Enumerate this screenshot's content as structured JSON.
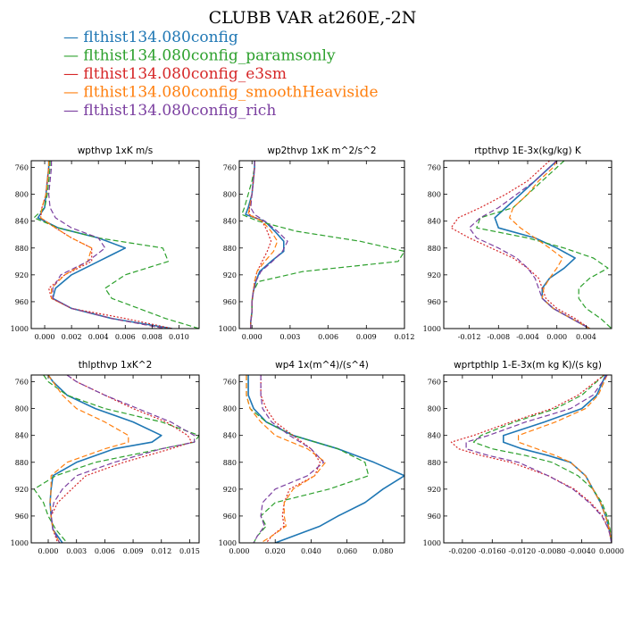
{
  "figure": {
    "title": "CLUBB VAR at260E,-2N",
    "legend": [
      {
        "name": "flthist134.080config",
        "color": "#1f77b4"
      },
      {
        "name": "flthist134.080config_paramsonly",
        "color": "#2ca02c"
      },
      {
        "name": "flthist134.080config_e3sm",
        "color": "#d62728"
      },
      {
        "name": "flthist134.080config_smoothHeaviside",
        "color": "#ff7f0e"
      },
      {
        "name": "flthist134.080config_rich",
        "color": "#7b3fa0"
      }
    ]
  },
  "chart_data": [
    {
      "type": "line",
      "title": "wpthvp   1xK m/s",
      "xlim": [
        -0.001,
        0.0115
      ],
      "xticks": [
        0.0,
        0.002,
        0.004,
        0.006,
        0.008,
        0.01
      ],
      "xtick_labels": [
        "0.000",
        "0.002",
        "0.004",
        "0.006",
        "0.008",
        "0.010"
      ],
      "ylim": [
        1000,
        750
      ],
      "yticks": [
        760,
        800,
        840,
        880,
        920,
        960,
        1000
      ],
      "y": [
        750,
        760,
        780,
        800,
        820,
        835,
        850,
        865,
        880,
        900,
        920,
        940,
        955,
        970,
        985,
        1000
      ],
      "series": [
        {
          "name": "flthist134.080config",
          "values": [
            0.0003,
            0.0003,
            0.0002,
            0.0001,
            0.0,
            -0.0005,
            0.001,
            0.004,
            0.006,
            0.004,
            0.002,
            0.0008,
            0.0006,
            0.002,
            0.005,
            0.0095
          ]
        },
        {
          "name": "flthist134.080config_paramsonly",
          "values": [
            0.0004,
            0.0004,
            0.0003,
            0.0002,
            0.0,
            -0.0008,
            0.001,
            0.004,
            0.0088,
            0.0092,
            0.006,
            0.0045,
            0.005,
            0.007,
            0.009,
            0.0115
          ]
        },
        {
          "name": "flthist134.080config_e3sm",
          "values": [
            0.0003,
            0.0003,
            0.0002,
            0.0001,
            -0.0002,
            -0.0003,
            0.0008,
            0.002,
            0.0035,
            0.0035,
            0.0015,
            0.0003,
            0.0005,
            0.002,
            0.006,
            0.0095
          ]
        },
        {
          "name": "flthist134.080config_smoothHeaviside",
          "values": [
            0.0003,
            0.0003,
            0.0002,
            0.0001,
            -0.0002,
            -0.0003,
            0.0008,
            0.002,
            0.0035,
            0.0032,
            0.0015,
            0.0005,
            0.0005,
            0.002,
            0.005,
            0.009
          ]
        },
        {
          "name": "flthist134.080config_rich",
          "values": [
            0.0005,
            0.0005,
            0.0004,
            0.0003,
            0.0004,
            0.0008,
            0.002,
            0.004,
            0.0045,
            0.0032,
            0.0012,
            0.0006,
            0.0006,
            0.002,
            0.005,
            0.009
          ]
        }
      ]
    },
    {
      "type": "line",
      "title": "wp2thvp   1xK m^2/s^2",
      "xlim": [
        -0.001,
        0.012
      ],
      "xticks": [
        0.0,
        0.003,
        0.006,
        0.009,
        0.012
      ],
      "xtick_labels": [
        "0.000",
        "0.003",
        "0.006",
        "0.009",
        "0.012"
      ],
      "ylim": [
        1000,
        750
      ],
      "yticks": [
        760,
        800,
        840,
        880,
        920,
        960,
        1000
      ],
      "y": [
        750,
        760,
        780,
        800,
        820,
        830,
        840,
        855,
        870,
        885,
        900,
        915,
        930,
        945,
        960,
        975,
        990,
        1000
      ],
      "series": [
        {
          "name": "flthist134.080config",
          "values": [
            0.0002,
            0.0002,
            0.0001,
            0.0,
            -0.0003,
            -0.0005,
            0.001,
            0.0018,
            0.0025,
            0.0025,
            0.0015,
            0.0006,
            0.0003,
            0.0001,
            0.0,
            0.0,
            -0.0001,
            -0.0001
          ]
        },
        {
          "name": "flthist134.080config_paramsonly",
          "values": [
            0.0002,
            0.0002,
            0.0,
            -0.0003,
            -0.0006,
            -0.0008,
            0.0005,
            0.0035,
            0.0085,
            0.012,
            0.0115,
            0.004,
            0.0005,
            0.0001,
            0.0,
            0.0,
            -0.0001,
            -0.0001
          ]
        },
        {
          "name": "flthist134.080config_e3sm",
          "values": [
            0.0002,
            0.0002,
            0.0001,
            0.0,
            -0.0002,
            -0.0002,
            0.0008,
            0.0012,
            0.0015,
            0.0012,
            0.0008,
            0.0004,
            0.0002,
            0.0001,
            0.0,
            0.0,
            -0.0001,
            -0.0001
          ]
        },
        {
          "name": "flthist134.080config_smoothHeaviside",
          "values": [
            0.0002,
            0.0002,
            0.0001,
            0.0,
            -0.0002,
            -0.0003,
            0.0008,
            0.0015,
            0.002,
            0.0017,
            0.001,
            0.0004,
            0.0002,
            0.0001,
            0.0,
            0.0,
            -0.0001,
            -0.0001
          ]
        },
        {
          "name": "flthist134.080config_rich",
          "values": [
            0.0002,
            0.0002,
            0.0001,
            0.0,
            -0.0001,
            0.0002,
            0.001,
            0.002,
            0.0028,
            0.0024,
            0.0016,
            0.0007,
            0.0003,
            0.0001,
            0.0,
            0.0,
            -0.0001,
            -0.0001
          ]
        }
      ]
    },
    {
      "type": "line",
      "title": "rtpthvp   1E-3x(kg/kg) K",
      "xlim": [
        -0.0155,
        0.0075
      ],
      "xticks": [
        -0.012,
        -0.008,
        -0.004,
        0.0,
        0.004
      ],
      "xtick_labels": [
        "-0.012",
        "-0.008",
        "-0.004",
        "0.000",
        "0.004"
      ],
      "ylim": [
        1000,
        750
      ],
      "yticks": [
        760,
        800,
        840,
        880,
        920,
        960,
        1000
      ],
      "y": [
        750,
        760,
        780,
        800,
        820,
        835,
        850,
        865,
        880,
        895,
        910,
        925,
        940,
        955,
        970,
        985,
        1000
      ],
      "series": [
        {
          "name": "flthist134.080config",
          "values": [
            0.0,
            -0.001,
            -0.003,
            -0.005,
            -0.007,
            -0.0085,
            -0.008,
            -0.003,
            0.0,
            0.0025,
            0.001,
            -0.001,
            -0.002,
            -0.002,
            -0.0005,
            0.002,
            0.0045
          ]
        },
        {
          "name": "flthist134.080config_paramsonly",
          "values": [
            0.001,
            0.0,
            -0.002,
            -0.004,
            -0.006,
            -0.0105,
            -0.011,
            -0.004,
            0.001,
            0.005,
            0.007,
            0.0045,
            0.003,
            0.003,
            0.004,
            0.006,
            0.0075
          ]
        },
        {
          "name": "flthist134.080config_e3sm",
          "values": [
            -0.001,
            -0.002,
            -0.004,
            -0.007,
            -0.0105,
            -0.0135,
            -0.0145,
            -0.012,
            -0.009,
            -0.006,
            -0.004,
            -0.0025,
            -0.002,
            -0.0015,
            0.0,
            0.0025,
            0.0045
          ]
        },
        {
          "name": "flthist134.080config_smoothHeaviside",
          "values": [
            0.0,
            -0.0005,
            -0.0025,
            -0.004,
            -0.006,
            -0.0065,
            -0.005,
            -0.003,
            -0.001,
            0.0008,
            0.0,
            -0.001,
            -0.0018,
            -0.002,
            -0.0005,
            0.002,
            0.0045
          ]
        },
        {
          "name": "flthist134.080config_rich",
          "values": [
            0.0,
            -0.001,
            -0.003,
            -0.0055,
            -0.008,
            -0.0105,
            -0.012,
            -0.011,
            -0.008,
            -0.0055,
            -0.004,
            -0.003,
            -0.0025,
            -0.002,
            -0.0005,
            0.002,
            0.0045
          ]
        }
      ]
    },
    {
      "type": "line",
      "title": "thlpthvp   1xK^2",
      "xlim": [
        -0.0018,
        0.016
      ],
      "xticks": [
        0.0,
        0.003,
        0.006,
        0.009,
        0.012,
        0.015
      ],
      "xtick_labels": [
        "0.000",
        "0.003",
        "0.006",
        "0.009",
        "0.012",
        "0.015"
      ],
      "ylim": [
        1000,
        750
      ],
      "yticks": [
        760,
        800,
        840,
        880,
        920,
        960,
        1000
      ],
      "y": [
        750,
        760,
        780,
        800,
        820,
        840,
        850,
        860,
        880,
        900,
        920,
        940,
        960,
        980,
        1000
      ],
      "series": [
        {
          "name": "flthist134.080config",
          "values": [
            0.0,
            0.0005,
            0.002,
            0.005,
            0.009,
            0.012,
            0.011,
            0.007,
            0.003,
            0.0005,
            0.0003,
            0.0002,
            0.0003,
            0.0005,
            0.0015
          ]
        },
        {
          "name": "flthist134.080config_paramsonly",
          "values": [
            -0.0005,
            0.0,
            0.002,
            0.006,
            0.012,
            0.016,
            0.0155,
            0.012,
            0.005,
            0.0008,
            -0.0015,
            -0.0005,
            0.0,
            0.0008,
            0.002
          ]
        },
        {
          "name": "flthist134.080config_e3sm",
          "values": [
            0.002,
            0.003,
            0.006,
            0.009,
            0.0125,
            0.0148,
            0.0152,
            0.013,
            0.008,
            0.004,
            0.0025,
            0.001,
            0.0003,
            0.0005,
            0.001
          ]
        },
        {
          "name": "flthist134.080config_smoothHeaviside",
          "values": [
            0.0,
            0.0005,
            0.0015,
            0.003,
            0.006,
            0.0085,
            0.0085,
            0.006,
            0.002,
            0.0003,
            0.0003,
            0.0002,
            0.0003,
            0.0005,
            0.0012
          ]
        },
        {
          "name": "flthist134.080config_rich",
          "values": [
            0.002,
            0.003,
            0.006,
            0.0095,
            0.013,
            0.0155,
            0.0155,
            0.012,
            0.007,
            0.003,
            0.0015,
            0.0006,
            0.0003,
            0.0005,
            0.0012
          ]
        }
      ]
    },
    {
      "type": "line",
      "title": "wp4   1x(m^4)/(s^4)",
      "xlim": [
        0.0,
        0.092
      ],
      "xticks": [
        0.0,
        0.02,
        0.04,
        0.06,
        0.08
      ],
      "xtick_labels": [
        "0.000",
        "0.020",
        "0.040",
        "0.060",
        "0.080"
      ],
      "ylim": [
        1000,
        750
      ],
      "yticks": [
        760,
        800,
        840,
        880,
        920,
        960,
        1000
      ],
      "y": [
        750,
        760,
        780,
        800,
        820,
        840,
        860,
        880,
        900,
        920,
        940,
        960,
        975,
        990,
        1000
      ],
      "series": [
        {
          "name": "flthist134.080config",
          "values": [
            0.005,
            0.005,
            0.005,
            0.008,
            0.015,
            0.03,
            0.055,
            0.075,
            0.092,
            0.08,
            0.07,
            0.055,
            0.045,
            0.03,
            0.02
          ]
        },
        {
          "name": "flthist134.080config_paramsonly",
          "values": [
            0.004,
            0.004,
            0.004,
            0.006,
            0.015,
            0.03,
            0.055,
            0.07,
            0.072,
            0.05,
            0.02,
            0.012,
            0.015,
            0.01,
            0.008
          ]
        },
        {
          "name": "flthist134.080config_e3sm",
          "values": [
            0.012,
            0.012,
            0.012,
            0.015,
            0.02,
            0.03,
            0.04,
            0.045,
            0.042,
            0.028,
            0.025,
            0.024,
            0.025,
            0.018,
            0.015
          ]
        },
        {
          "name": "flthist134.080config_smoothHeaviside",
          "values": [
            0.004,
            0.004,
            0.004,
            0.006,
            0.012,
            0.02,
            0.038,
            0.048,
            0.042,
            0.03,
            0.025,
            0.025,
            0.026,
            0.018,
            0.012
          ]
        },
        {
          "name": "flthist134.080config_rich",
          "values": [
            0.012,
            0.012,
            0.012,
            0.013,
            0.018,
            0.028,
            0.04,
            0.047,
            0.038,
            0.02,
            0.013,
            0.012,
            0.014,
            0.01,
            0.008
          ]
        }
      ]
    },
    {
      "type": "line",
      "title": "wprtpthlp   1-E-3x(m kg K)/(s kg)",
      "xlim": [
        -0.0225,
        0.0
      ],
      "xticks": [
        -0.02,
        -0.016,
        -0.012,
        -0.008,
        -0.004,
        0.0
      ],
      "xtick_labels": [
        "-0.0200",
        "-0.0160",
        "-0.0120",
        "-0.0080",
        "-0.0040",
        "0.0000"
      ],
      "ylim": [
        1000,
        750
      ],
      "yticks": [
        760,
        800,
        840,
        880,
        920,
        960,
        1000
      ],
      "y": [
        750,
        780,
        800,
        820,
        840,
        850,
        860,
        870,
        880,
        900,
        920,
        940,
        960,
        980,
        1000
      ],
      "series": [
        {
          "name": "flthist134.080config",
          "values": [
            -0.0008,
            -0.002,
            -0.004,
            -0.009,
            -0.0145,
            -0.0145,
            -0.012,
            -0.0085,
            -0.0055,
            -0.0035,
            -0.0025,
            -0.0015,
            -0.0008,
            -0.0003,
            0.0
          ]
        },
        {
          "name": "flthist134.080config_paramsonly",
          "values": [
            -0.001,
            -0.004,
            -0.0075,
            -0.013,
            -0.0175,
            -0.0185,
            -0.016,
            -0.0115,
            -0.008,
            -0.0045,
            -0.0025,
            -0.0013,
            -0.0006,
            -0.0002,
            0.0
          ]
        },
        {
          "name": "flthist134.080config_e3sm",
          "values": [
            -0.001,
            -0.0045,
            -0.008,
            -0.0135,
            -0.0185,
            -0.0215,
            -0.0205,
            -0.0175,
            -0.0135,
            -0.0085,
            -0.005,
            -0.0028,
            -0.0012,
            -0.0004,
            0.0
          ]
        },
        {
          "name": "flthist134.080config_smoothHeaviside",
          "values": [
            -0.0006,
            -0.0018,
            -0.0035,
            -0.0075,
            -0.0125,
            -0.0125,
            -0.01,
            -0.0075,
            -0.0055,
            -0.0035,
            -0.0025,
            -0.0015,
            -0.0008,
            -0.0003,
            0.0
          ]
        },
        {
          "name": "flthist134.080config_rich",
          "values": [
            -0.0006,
            -0.0025,
            -0.0055,
            -0.0115,
            -0.0165,
            -0.0195,
            -0.0195,
            -0.0165,
            -0.0125,
            -0.0085,
            -0.0052,
            -0.003,
            -0.0013,
            -0.0004,
            0.0
          ]
        }
      ]
    }
  ]
}
